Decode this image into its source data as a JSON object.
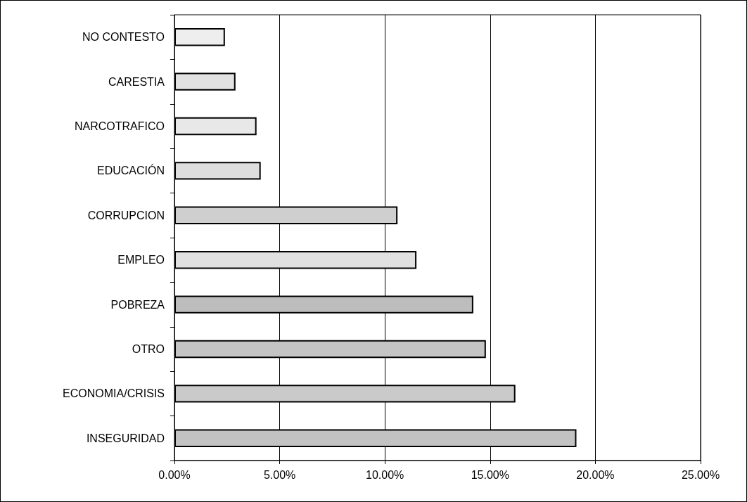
{
  "chart_data": {
    "type": "bar",
    "orientation": "horizontal",
    "categories": [
      "NO CONTESTO",
      "CARESTIA",
      "NARCOTRAFICO",
      "EDUCACIÓN",
      "CORRUPCION",
      "EMPLEO",
      "POBREZA",
      "OTRO",
      "ECONOMIA/CRISIS",
      "INSEGURIDAD"
    ],
    "values": [
      2.4,
      2.9,
      3.9,
      4.1,
      10.6,
      11.5,
      14.2,
      14.8,
      16.2,
      19.1
    ],
    "colors": [
      "#eeeeee",
      "#e2e2e2",
      "#e8e8e8",
      "#dedede",
      "#cfcfcf",
      "#e0e0e0",
      "#bdbdbd",
      "#c4c4c4",
      "#cacaca",
      "#c2c2c2"
    ],
    "xlim": [
      0,
      25
    ],
    "xticks": [
      {
        "value": 0,
        "label": "0.00%"
      },
      {
        "value": 5,
        "label": "5.00%"
      },
      {
        "value": 10,
        "label": "10.00%"
      },
      {
        "value": 15,
        "label": "15.00%"
      },
      {
        "value": 20,
        "label": "20.00%"
      },
      {
        "value": 25,
        "label": "25.00%"
      }
    ],
    "grid": "x"
  }
}
